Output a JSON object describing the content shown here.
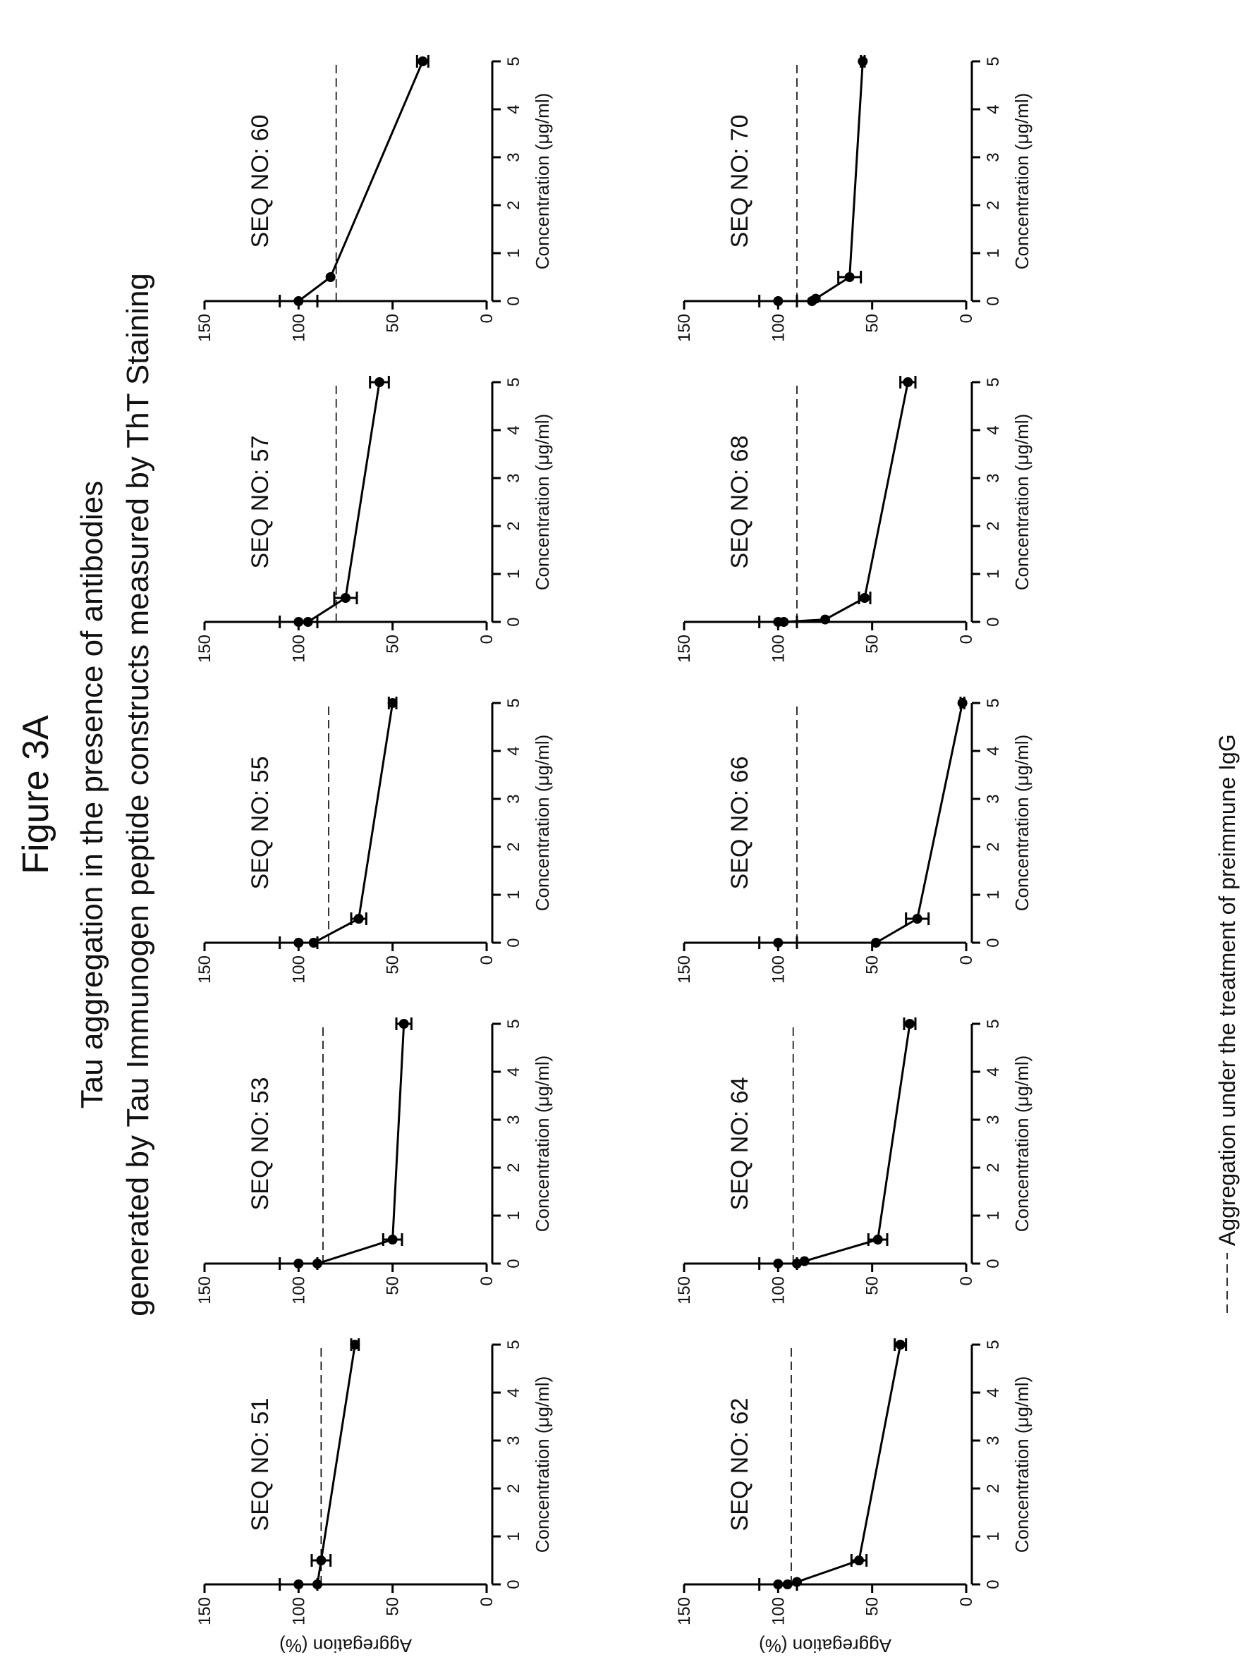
{
  "figure_title": "Figure 3A",
  "subtitle_line1": "Tau aggregation in the presence of antibodies",
  "subtitle_line2": "generated by Tau Immunogen peptide constructs measured by ThT Staining",
  "legend_label": "Aggregation under the treatment of preimmune IgG",
  "chart_data": [
    {
      "type": "line",
      "title": "SEQ NO: 51",
      "xlabel": "Concentration (μg/ml)",
      "ylabel": "Aggregation (%)",
      "xlim": [
        0,
        5
      ],
      "ylim": [
        0,
        150
      ],
      "x_ticks": [
        "0",
        "1",
        "2",
        "3",
        "4",
        "5"
      ],
      "y_ticks": [
        "0",
        "50",
        "100",
        "150"
      ],
      "reference_line": 88,
      "points": [
        {
          "x": 0,
          "y": 100,
          "err": 10
        },
        {
          "x": 0,
          "y": 90,
          "err": 0
        },
        {
          "x": 0.5,
          "y": 88,
          "err": 5
        },
        {
          "x": 5,
          "y": 70,
          "err": 2
        }
      ]
    },
    {
      "type": "line",
      "title": "SEQ NO: 53",
      "xlabel": "Concentration (μg/ml)",
      "ylabel": "",
      "xlim": [
        0,
        5
      ],
      "ylim": [
        0,
        150
      ],
      "x_ticks": [
        "0",
        "1",
        "2",
        "3",
        "4",
        "5"
      ],
      "y_ticks": [
        "0",
        "50",
        "100",
        "150"
      ],
      "reference_line": 87,
      "points": [
        {
          "x": 0,
          "y": 100,
          "err": 10
        },
        {
          "x": 0,
          "y": 90,
          "err": 0
        },
        {
          "x": 0.5,
          "y": 50,
          "err": 5
        },
        {
          "x": 5,
          "y": 44,
          "err": 4
        }
      ]
    },
    {
      "type": "line",
      "title": "SEQ NO: 55",
      "xlabel": "Concentration (μg/ml)",
      "ylabel": "",
      "xlim": [
        0,
        5
      ],
      "ylim": [
        0,
        150
      ],
      "x_ticks": [
        "0",
        "1",
        "2",
        "3",
        "4",
        "5"
      ],
      "y_ticks": [
        "0",
        "50",
        "100",
        "150"
      ],
      "reference_line": 84,
      "points": [
        {
          "x": 0,
          "y": 100,
          "err": 10
        },
        {
          "x": 0,
          "y": 92,
          "err": 0
        },
        {
          "x": 0.5,
          "y": 68,
          "err": 4
        },
        {
          "x": 5,
          "y": 50,
          "err": 2
        }
      ]
    },
    {
      "type": "line",
      "title": "SEQ NO: 57",
      "xlabel": "Concentration (μg/ml)",
      "ylabel": "",
      "xlim": [
        0,
        5
      ],
      "ylim": [
        0,
        150
      ],
      "x_ticks": [
        "0",
        "1",
        "2",
        "3",
        "4",
        "5"
      ],
      "y_ticks": [
        "0",
        "50",
        "100",
        "150"
      ],
      "reference_line": 80,
      "points": [
        {
          "x": 0,
          "y": 100,
          "err": 10
        },
        {
          "x": 0,
          "y": 95,
          "err": 0
        },
        {
          "x": 0.5,
          "y": 75,
          "err": 6
        },
        {
          "x": 5,
          "y": 57,
          "err": 5
        }
      ]
    },
    {
      "type": "line",
      "title": "SEQ NO: 60",
      "xlabel": "Concentration (μg/ml)",
      "ylabel": "",
      "xlim": [
        0,
        5
      ],
      "ylim": [
        0,
        150
      ],
      "x_ticks": [
        "0",
        "1",
        "2",
        "3",
        "4",
        "5"
      ],
      "y_ticks": [
        "0",
        "50",
        "100",
        "150"
      ],
      "reference_line": 80,
      "points": [
        {
          "x": 0,
          "y": 100,
          "err": 10
        },
        {
          "x": 0.5,
          "y": 83,
          "err": 0
        },
        {
          "x": 5,
          "y": 34,
          "err": 3
        }
      ]
    },
    {
      "type": "line",
      "title": "SEQ NO: 62",
      "xlabel": "Concentration (μg/ml)",
      "ylabel": "Aggregation (%)",
      "xlim": [
        0,
        5
      ],
      "ylim": [
        0,
        150
      ],
      "x_ticks": [
        "0",
        "1",
        "2",
        "3",
        "4",
        "5"
      ],
      "y_ticks": [
        "0",
        "50",
        "100",
        "150"
      ],
      "reference_line": 93,
      "points": [
        {
          "x": 0,
          "y": 100,
          "err": 10
        },
        {
          "x": 0,
          "y": 95,
          "err": 0
        },
        {
          "x": 0.05,
          "y": 90,
          "err": 0
        },
        {
          "x": 0.5,
          "y": 57,
          "err": 4
        },
        {
          "x": 5,
          "y": 35,
          "err": 3
        }
      ]
    },
    {
      "type": "line",
      "title": "SEQ NO: 64",
      "xlabel": "Concentration (μg/ml)",
      "ylabel": "",
      "xlim": [
        0,
        5
      ],
      "ylim": [
        0,
        150
      ],
      "x_ticks": [
        "0",
        "1",
        "2",
        "3",
        "4",
        "5"
      ],
      "y_ticks": [
        "0",
        "50",
        "100",
        "150"
      ],
      "reference_line": 92,
      "points": [
        {
          "x": 0,
          "y": 100,
          "err": 10
        },
        {
          "x": 0,
          "y": 90,
          "err": 0
        },
        {
          "x": 0.05,
          "y": 86,
          "err": 0
        },
        {
          "x": 0.5,
          "y": 47,
          "err": 5
        },
        {
          "x": 5,
          "y": 30,
          "err": 3
        }
      ]
    },
    {
      "type": "line",
      "title": "SEQ NO: 66",
      "xlabel": "Concentration (μg/ml)",
      "ylabel": "",
      "xlim": [
        0,
        5
      ],
      "ylim": [
        0,
        150
      ],
      "x_ticks": [
        "0",
        "1",
        "2",
        "3",
        "4",
        "5"
      ],
      "y_ticks": [
        "0",
        "50",
        "100",
        "150"
      ],
      "reference_line": 90,
      "points": [
        {
          "x": 0,
          "y": 100,
          "err": 10
        },
        {
          "x": 0,
          "y": 48,
          "err": 0
        },
        {
          "x": 0.5,
          "y": 26,
          "err": 6
        },
        {
          "x": 5,
          "y": 2,
          "err": 1
        }
      ]
    },
    {
      "type": "line",
      "title": "SEQ NO: 68",
      "xlabel": "Concentration (μg/ml)",
      "ylabel": "",
      "xlim": [
        0,
        5
      ],
      "ylim": [
        0,
        150
      ],
      "x_ticks": [
        "0",
        "1",
        "2",
        "3",
        "4",
        "5"
      ],
      "y_ticks": [
        "0",
        "50",
        "100",
        "150"
      ],
      "reference_line": 90,
      "points": [
        {
          "x": 0,
          "y": 100,
          "err": 10
        },
        {
          "x": 0,
          "y": 97,
          "err": 0
        },
        {
          "x": 0.05,
          "y": 75,
          "err": 0
        },
        {
          "x": 0.5,
          "y": 54,
          "err": 3
        },
        {
          "x": 5,
          "y": 31,
          "err": 4
        }
      ]
    },
    {
      "type": "line",
      "title": "SEQ NO: 70",
      "xlabel": "Concentration (μg/ml)",
      "ylabel": "",
      "xlim": [
        0,
        5
      ],
      "ylim": [
        0,
        150
      ],
      "x_ticks": [
        "0",
        "1",
        "2",
        "3",
        "4",
        "5"
      ],
      "y_ticks": [
        "0",
        "50",
        "100",
        "150"
      ],
      "reference_line": 90,
      "points": [
        {
          "x": 0,
          "y": 100,
          "err": 10
        },
        {
          "x": 0,
          "y": 82,
          "err": 0
        },
        {
          "x": 0.05,
          "y": 80,
          "err": 0
        },
        {
          "x": 0.5,
          "y": 62,
          "err": 6
        },
        {
          "x": 5,
          "y": 55,
          "err": 1
        }
      ]
    }
  ]
}
